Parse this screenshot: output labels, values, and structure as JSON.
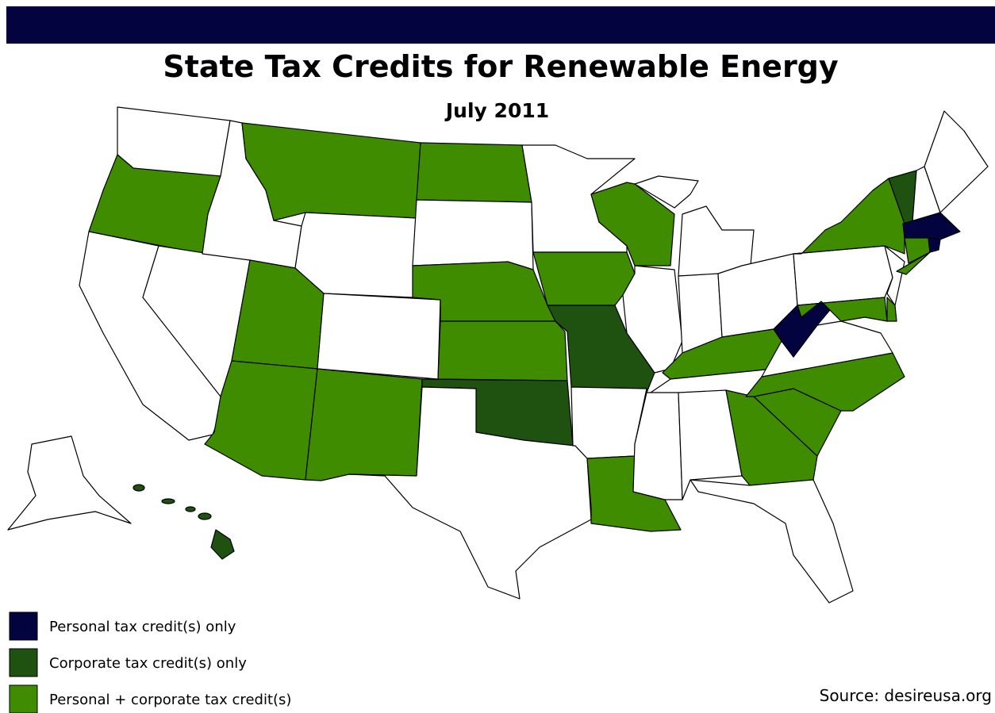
{
  "title": "State Tax Credits for Renewable Energy",
  "subtitle": "July 2011",
  "legend": [
    {
      "label": "Personal tax credit(s) only",
      "color": "#03033f"
    },
    {
      "label": "Corporate tax credit(s) only",
      "color": "#1f5210"
    },
    {
      "label": "Personal + corporate tax credit(s)",
      "color": "#3f8c00"
    }
  ],
  "source": "Source: desireusa.org"
}
